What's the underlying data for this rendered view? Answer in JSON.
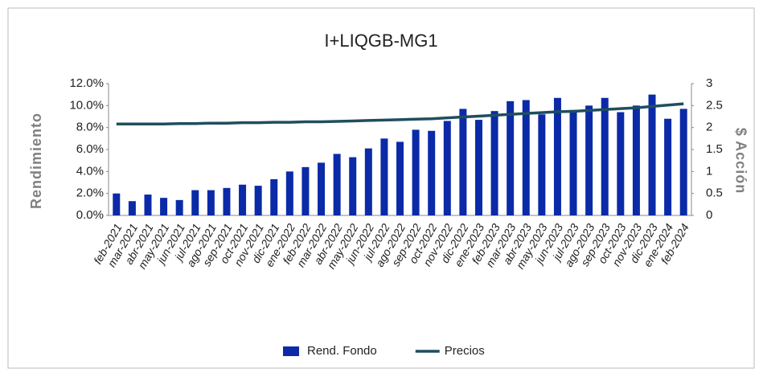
{
  "chart_data": {
    "type": "bar_line",
    "title": "I+LIQGB-MG1",
    "y_label": "Rendimiento",
    "y2_label": "$ Acción",
    "categories": [
      "feb-2021",
      "mar-2021",
      "abr-2021",
      "may-2021",
      "jun-2021",
      "jul-2021",
      "ago-2021",
      "sep-2021",
      "oct-2021",
      "nov-2021",
      "dic-2021",
      "ene-2022",
      "feb-2022",
      "mar-2022",
      "abr-2022",
      "may-2022",
      "jun-2022",
      "jul-2022",
      "ago-2022",
      "sep-2022",
      "oct-2022",
      "nov-2022",
      "dic-2022",
      "ene-2023",
      "feb-2023",
      "mar-2023",
      "abr-2023",
      "may-2023",
      "jun-2023",
      "jul-2023",
      "ago-2023",
      "sep-2023",
      "oct-2023",
      "nov-2023",
      "dic-2023",
      "ene-2024",
      "feb-2024"
    ],
    "series": [
      {
        "name": "Rend. Fondo",
        "type": "bar",
        "color": "#0b2aa8",
        "values": [
          2.0,
          1.3,
          1.9,
          1.6,
          1.4,
          2.3,
          2.3,
          2.5,
          2.8,
          2.7,
          3.3,
          4.0,
          4.4,
          4.8,
          5.6,
          5.3,
          6.1,
          7.0,
          6.7,
          7.8,
          7.7,
          8.6,
          9.7,
          8.7,
          9.5,
          10.4,
          10.5,
          9.2,
          10.7,
          9.6,
          10.0,
          10.7,
          9.4,
          10.0,
          11.0,
          8.8,
          9.7
        ]
      },
      {
        "name": "Precios",
        "type": "line",
        "axis": "y2",
        "color": "#1f4e5f",
        "values": [
          2.08,
          2.08,
          2.08,
          2.08,
          2.09,
          2.09,
          2.1,
          2.1,
          2.11,
          2.11,
          2.12,
          2.12,
          2.13,
          2.13,
          2.14,
          2.15,
          2.16,
          2.17,
          2.18,
          2.19,
          2.2,
          2.22,
          2.24,
          2.26,
          2.28,
          2.3,
          2.32,
          2.34,
          2.36,
          2.37,
          2.39,
          2.41,
          2.43,
          2.45,
          2.48,
          2.51,
          2.54
        ]
      }
    ],
    "ylim": [
      0,
      12
    ],
    "yticks": [
      {
        "value": 0,
        "label": "0.0%"
      },
      {
        "value": 2,
        "label": "2.0%"
      },
      {
        "value": 4,
        "label": "4.0%"
      },
      {
        "value": 6,
        "label": "6.0%"
      },
      {
        "value": 8,
        "label": "8.0%"
      },
      {
        "value": 10,
        "label": "10.0%"
      },
      {
        "value": 12,
        "label": "12.0%"
      }
    ],
    "y2lim": [
      0,
      3
    ],
    "y2ticks": [
      0,
      0.5,
      1,
      1.5,
      2,
      2.5,
      3
    ],
    "legend": "bottom"
  }
}
